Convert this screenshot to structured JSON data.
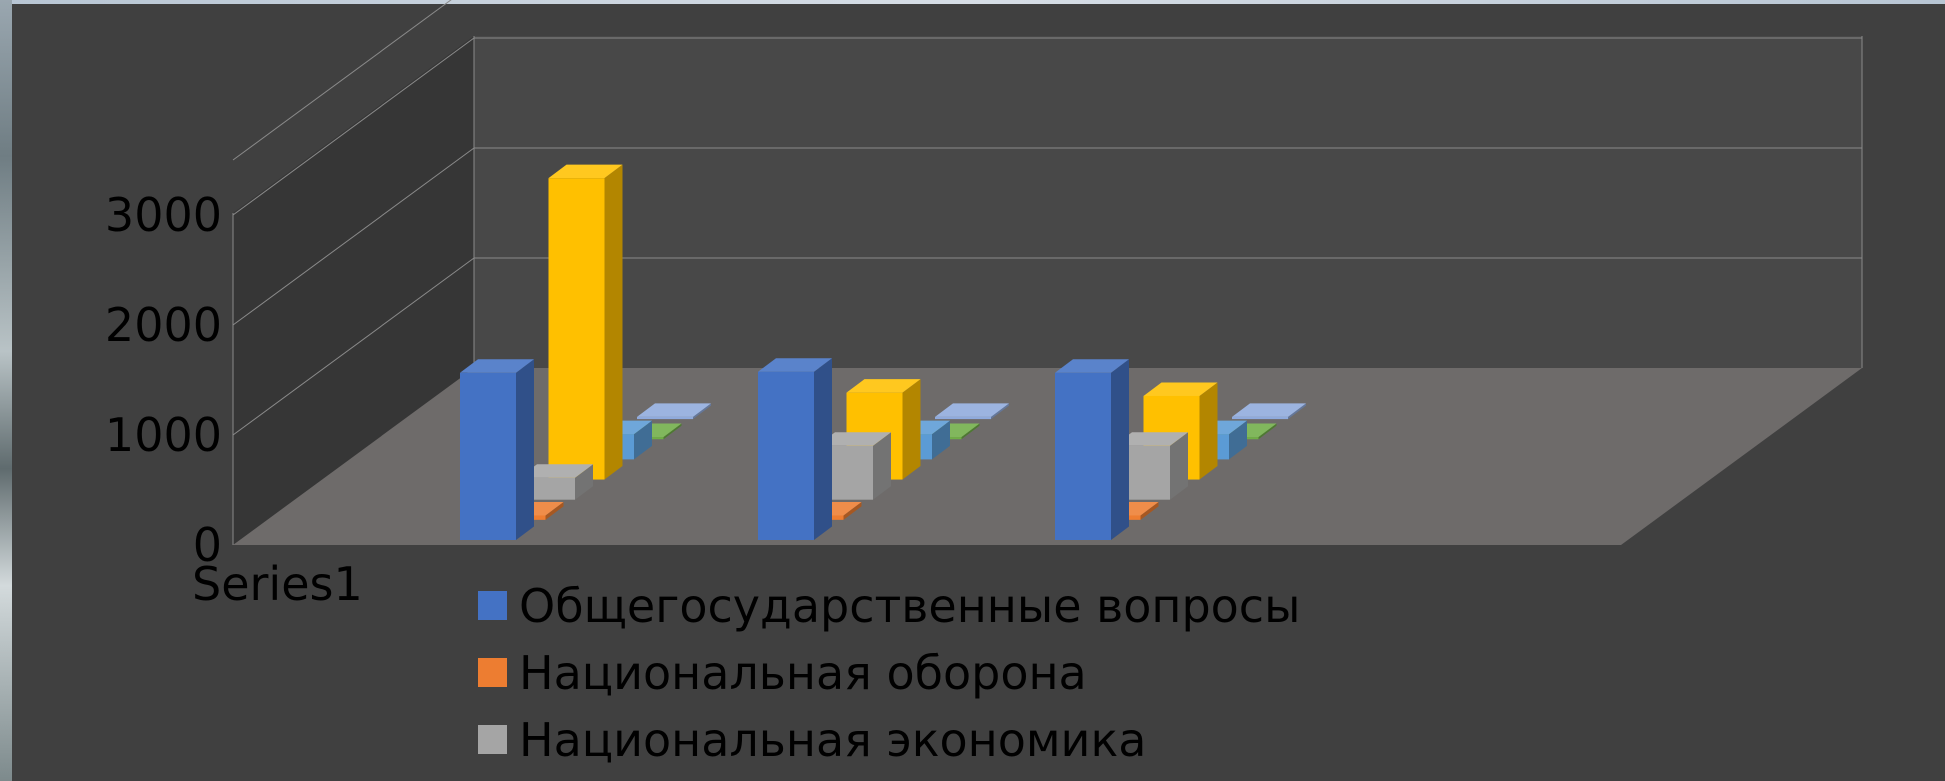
{
  "chart_data": {
    "type": "bar",
    "subtype": "3d-clustered-column",
    "categories": [
      "Series1",
      "",
      ""
    ],
    "y_ticks": [
      "0",
      "1000",
      "2000",
      "3000"
    ],
    "ylim": [
      0,
      3500
    ],
    "grid": true,
    "legend_position": "bottom",
    "series": [
      {
        "name": "Общегосударственные вопросы",
        "color": "#4472c4",
        "values": [
          1520,
          1530,
          1520
        ]
      },
      {
        "name": "Национальная оборона",
        "color": "#ed7d31",
        "values": [
          40,
          40,
          40
        ]
      },
      {
        "name": "Национальная экономика",
        "color": "#a5a5a5",
        "values": [
          200,
          490,
          490
        ]
      },
      {
        "color": "#ffc000",
        "values": [
          2740,
          790,
          760
        ]
      },
      {
        "color": "#5b9bd5",
        "values": [
          230,
          230,
          230
        ]
      },
      {
        "color": "#70ad47",
        "values": [
          20,
          20,
          20
        ]
      },
      {
        "color": "#8faadc",
        "values": [
          20,
          20,
          20
        ]
      }
    ]
  }
}
